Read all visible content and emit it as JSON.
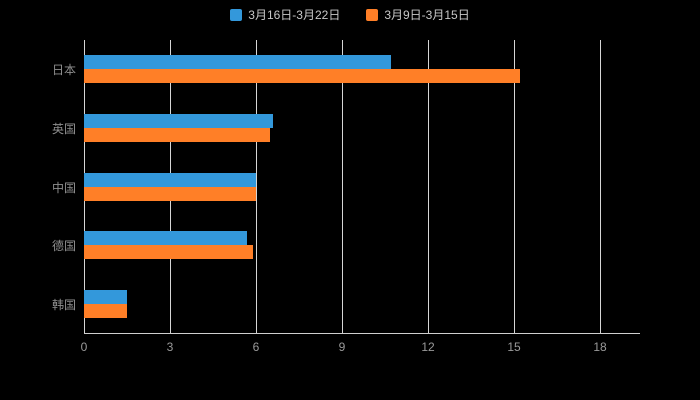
{
  "chart_data": {
    "type": "bar",
    "orientation": "horizontal",
    "title": "",
    "xlabel": "",
    "ylabel": "",
    "categories": [
      "日本",
      "英国",
      "中国",
      "德国",
      "韩国"
    ],
    "series": [
      {
        "name": "3月16日-3月22日",
        "color": "#3398DB",
        "values": [
          10.7,
          6.6,
          6.0,
          5.7,
          1.5
        ]
      },
      {
        "name": "3月9日-3月15日",
        "color": "#FF7F27",
        "values": [
          15.2,
          6.5,
          6.0,
          5.9,
          1.5
        ]
      }
    ],
    "xticks": [
      0,
      3,
      6,
      9,
      12,
      15,
      18
    ],
    "xlim": [
      0,
      18
    ],
    "grid": true,
    "legend_position": "top",
    "background": "#000000"
  }
}
